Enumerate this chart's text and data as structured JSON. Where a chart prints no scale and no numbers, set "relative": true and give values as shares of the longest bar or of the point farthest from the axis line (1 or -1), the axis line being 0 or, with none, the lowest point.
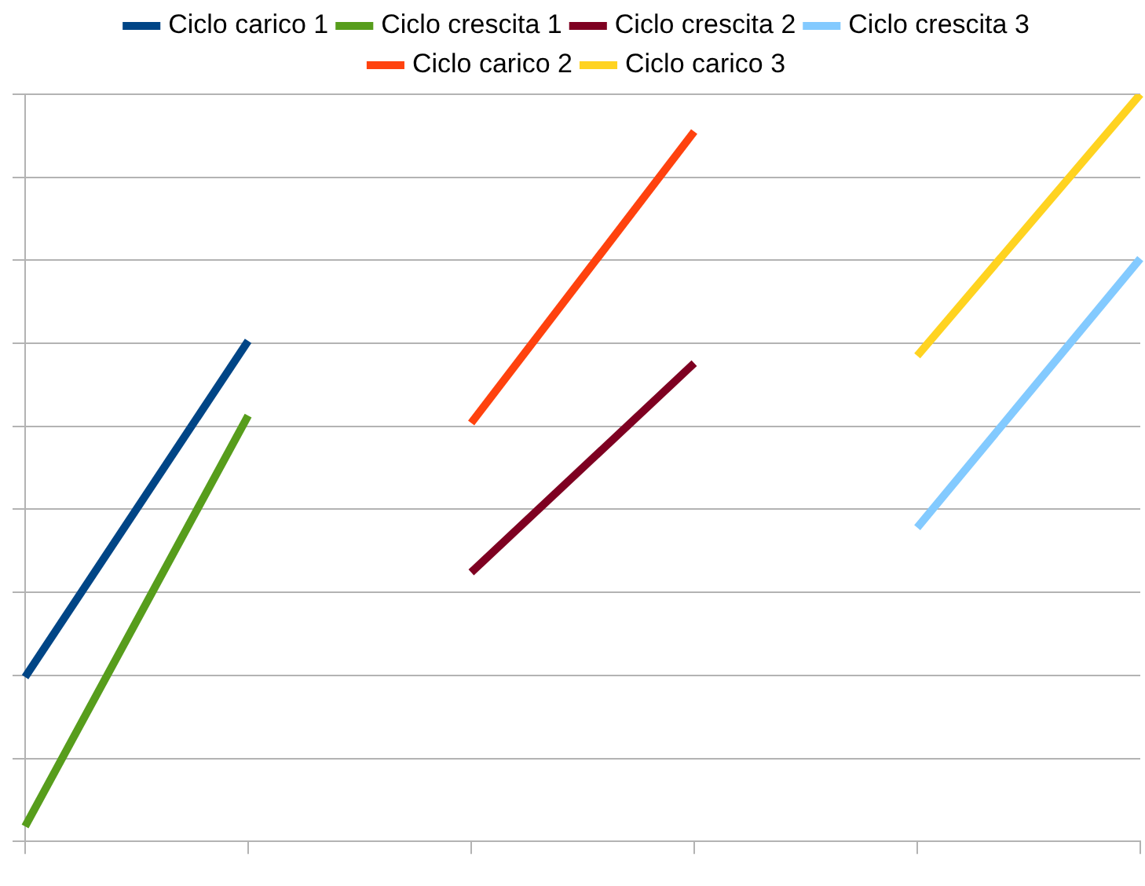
{
  "chart_data": {
    "type": "line",
    "relative": true,
    "categories": [
      null,
      null,
      null,
      null,
      null,
      null
    ],
    "series": [
      {
        "name": "Ciclo carico 1",
        "color": "#004586",
        "values": [
          0.22,
          0.67,
          null,
          null,
          null,
          null
        ]
      },
      {
        "name": "Ciclo crescita 1",
        "color": "#579d1c",
        "values": [
          0.02,
          0.57,
          null,
          null,
          null,
          null
        ]
      },
      {
        "name": "Ciclo crescita 2",
        "color": "#7e0021",
        "values": [
          null,
          null,
          0.36,
          0.64,
          null,
          null
        ]
      },
      {
        "name": "Ciclo crescita 3",
        "color": "#83caff",
        "values": [
          null,
          null,
          null,
          null,
          0.42,
          0.78
        ]
      },
      {
        "name": "Ciclo carico 2",
        "color": "#ff420e",
        "values": [
          null,
          null,
          0.56,
          0.95,
          null,
          null
        ]
      },
      {
        "name": "Ciclo carico 3",
        "color": "#ffd320",
        "values": [
          null,
          null,
          null,
          null,
          0.65,
          1
        ]
      }
    ],
    "grid": "y",
    "legend": "top",
    "marker": "none",
    "line_style": "solid"
  }
}
